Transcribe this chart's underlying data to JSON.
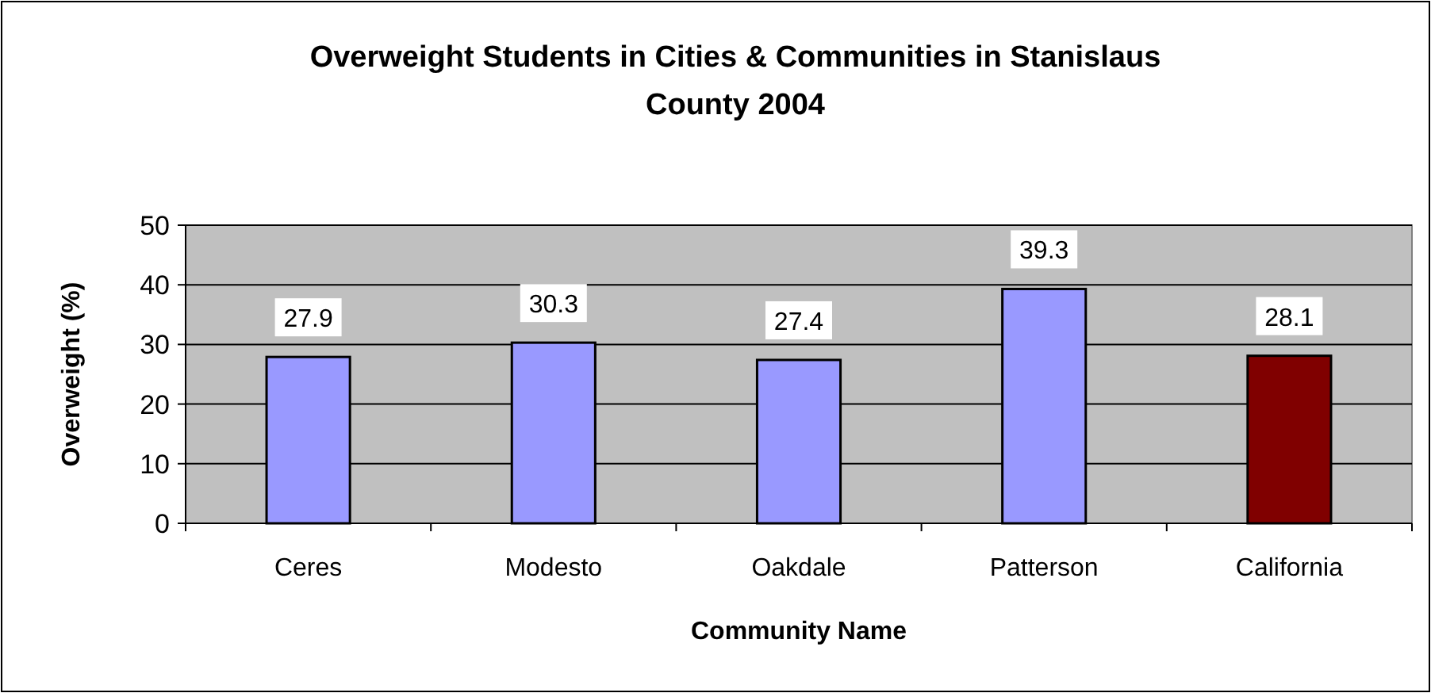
{
  "chart_data": {
    "type": "bar",
    "title": "Overweight Students in Cities & Communities in Stanislaus County 2004",
    "xlabel": "Community Name",
    "ylabel": "Overweight (%)",
    "categories": [
      "Ceres",
      "Modesto",
      "Oakdale",
      "Patterson",
      "California"
    ],
    "values": [
      27.9,
      30.3,
      27.4,
      39.3,
      28.1
    ],
    "colors": [
      "#9999ff",
      "#9999ff",
      "#9999ff",
      "#9999ff",
      "#800000"
    ],
    "ylim": [
      0,
      50
    ],
    "yticks": [
      0,
      10,
      20,
      30,
      40,
      50
    ],
    "grid": "y",
    "data_labels": true
  }
}
